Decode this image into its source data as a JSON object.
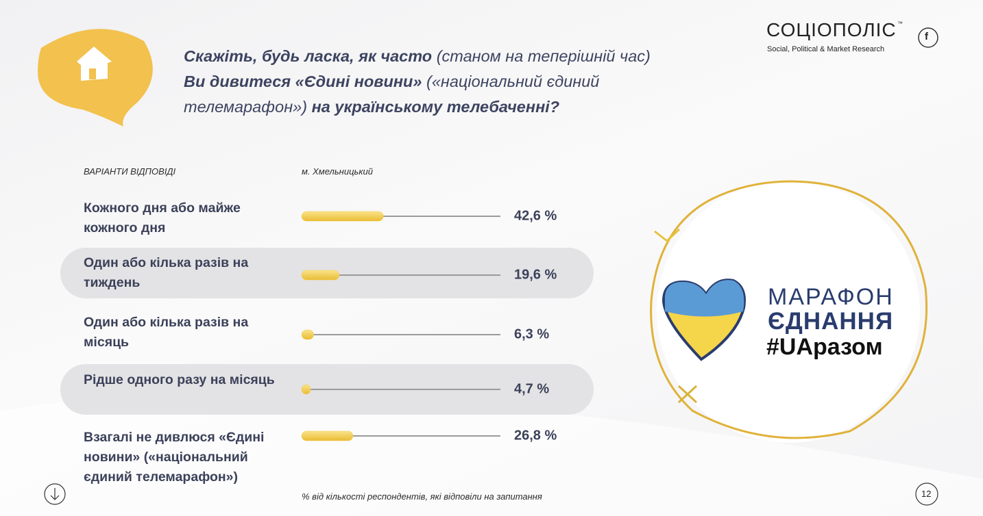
{
  "brand": {
    "name": "СОЦІОПОЛІС",
    "tm": "™",
    "tagline": "Social, Political & Market Research",
    "social": "f"
  },
  "title": [
    "Скажіть, будь ласка, як часто",
    "(станом на теперішній час)",
    "Ви дивитеся «Єдині новини»",
    "(«національний єдиний",
    "телемарафон»)",
    "на українському телебаченні?"
  ],
  "chart_data": {
    "type": "bar",
    "orientation": "horizontal",
    "category_header": "ВАРІАНТИ ВІДПОВІДІ",
    "categories": [
      "Кожного дня або майже кожного дня",
      "Один або кілька разів на тиждень",
      "Один або кілька разів на місяць",
      "Рідше одного разу на місяць",
      "Взагалі не дивлюся «Єдині новини» («національний єдиний телемарафон»)"
    ],
    "series": [
      {
        "name": "м. Хмельницький",
        "color": "#f2c94c",
        "values": [
          42.6,
          19.6,
          6.3,
          4.7,
          26.8
        ],
        "value_labels": [
          "42,6 %",
          "19,6 %",
          "6,3 %",
          "4,7 %",
          "26,8 %"
        ]
      }
    ],
    "xlim": [
      0,
      100
    ],
    "note": "% від кількості респондентів, які відповіли на запитання"
  },
  "logo": {
    "line1": "МАРАФОН",
    "line2": "ЄДНАННЯ",
    "line3": "#UAразом"
  },
  "page_number": "12"
}
